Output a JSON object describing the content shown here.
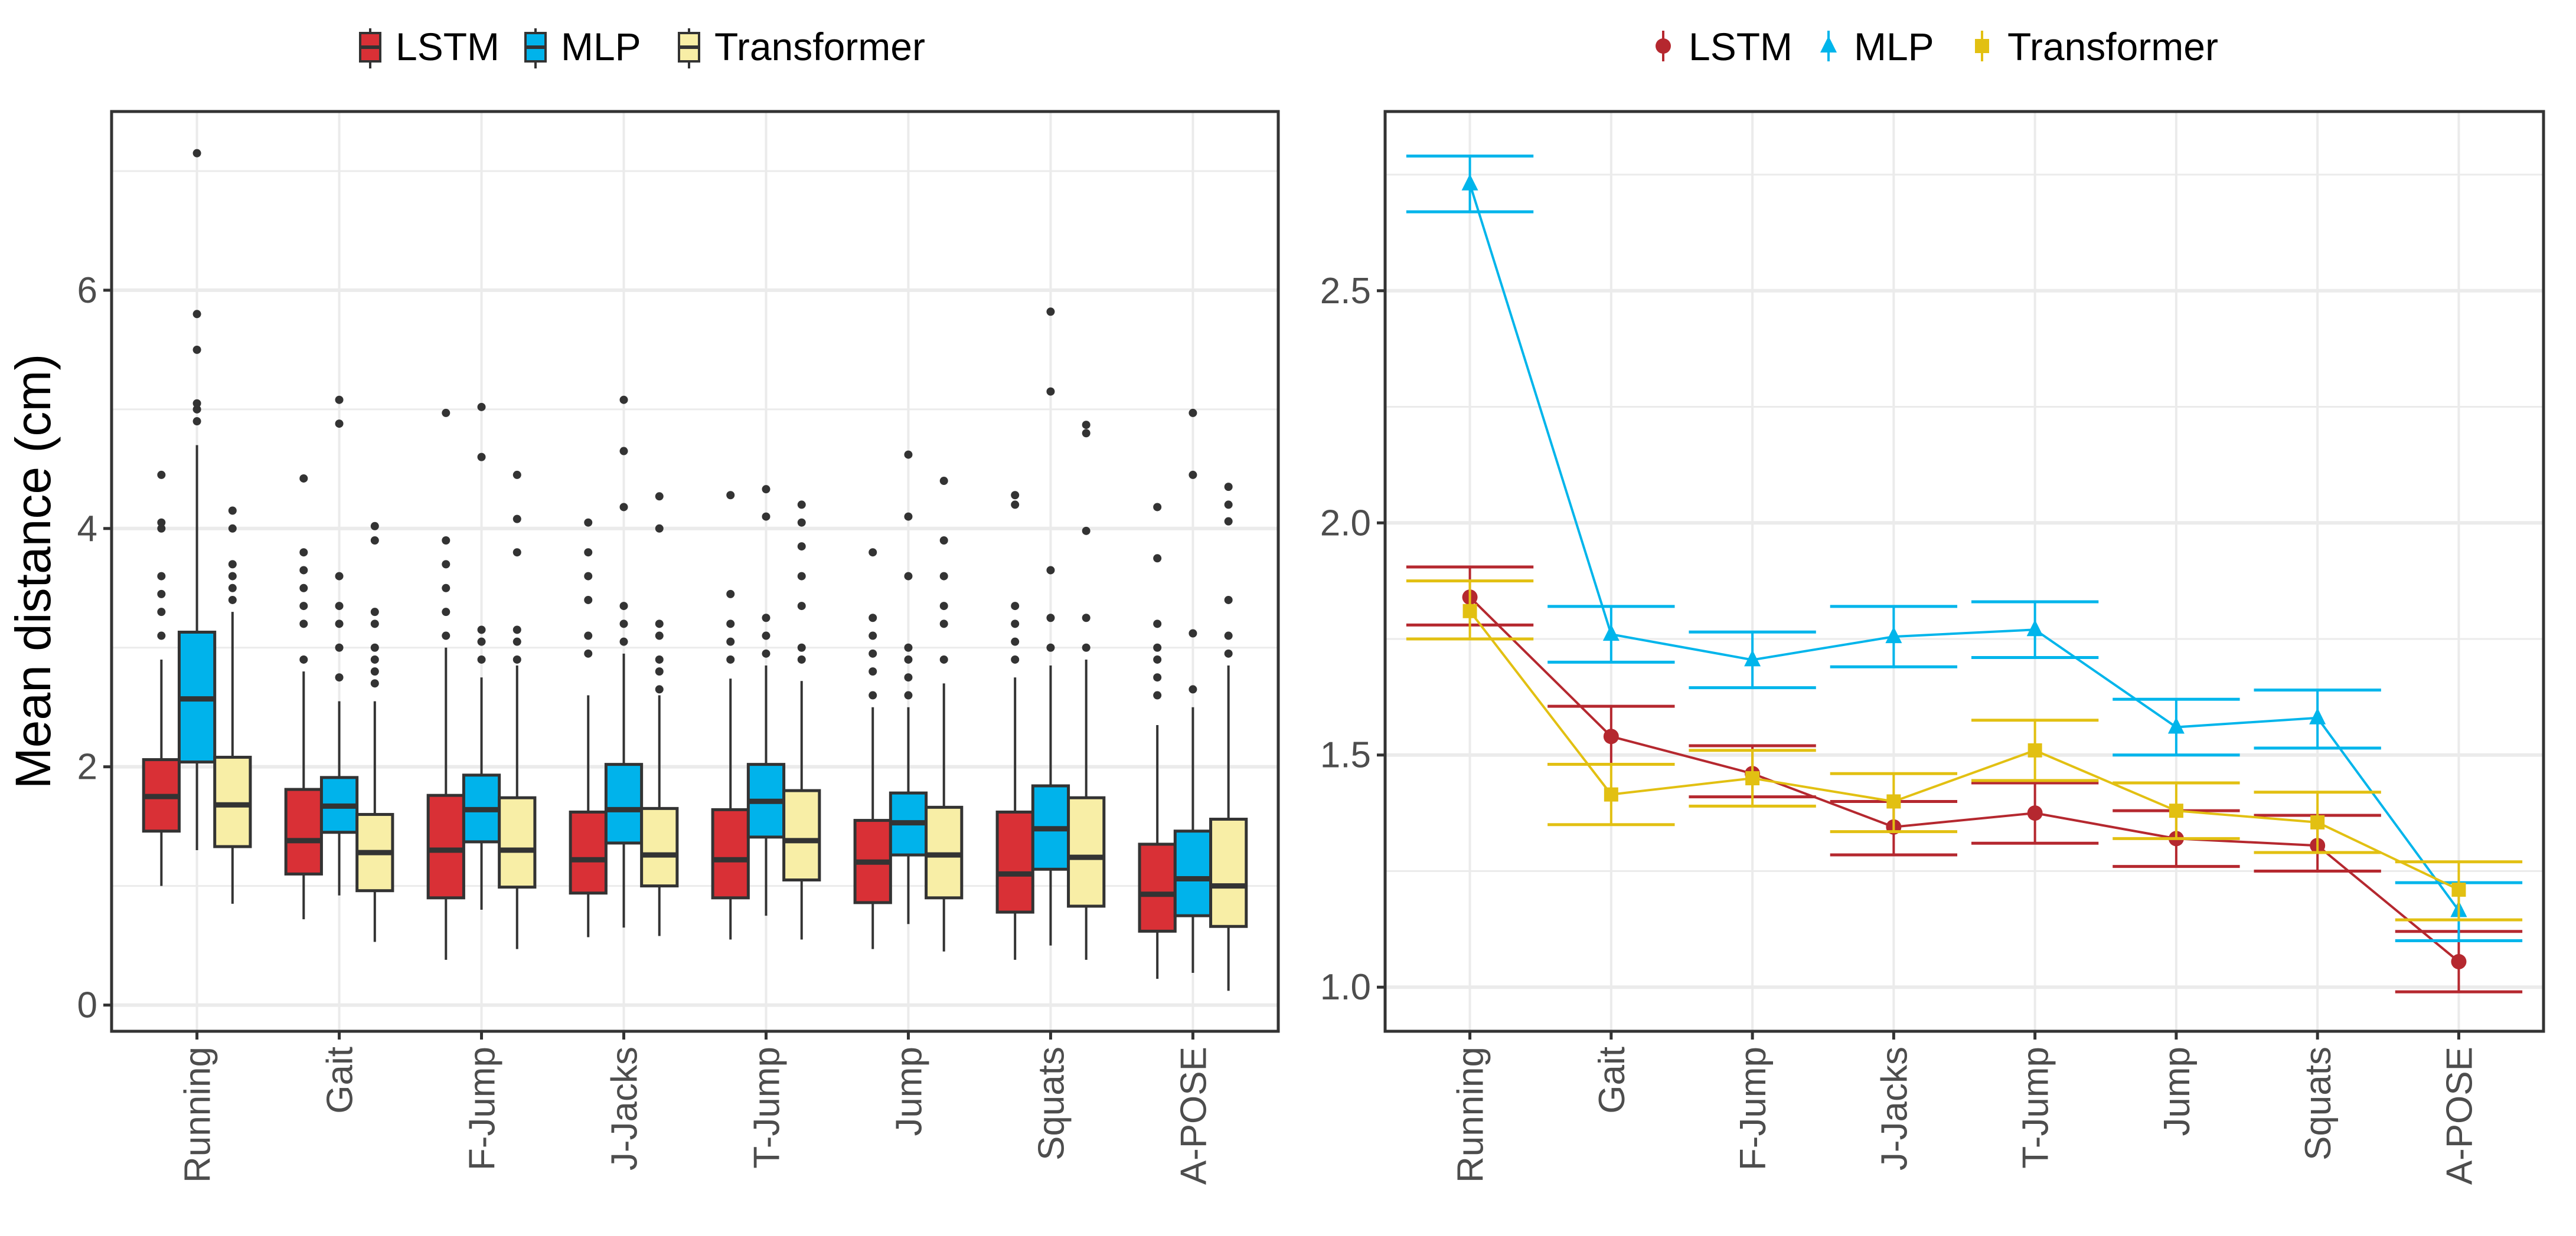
{
  "chart_data": [
    {
      "type": "box",
      "title": "",
      "xlabel": "",
      "ylabel": "Mean distance (cm)",
      "ylim": [
        -0.22,
        7.5
      ],
      "yticks": [
        0,
        2,
        4,
        6
      ],
      "grid": true,
      "legend_position": "top",
      "categories": [
        "Running",
        "Gait",
        "F-Jump",
        "J-Jacks",
        "T-Jump",
        "Jump",
        "Squats",
        "A-POSE"
      ],
      "series": [
        {
          "name": "LSTM",
          "color": "#d93036",
          "boxes": [
            {
              "low": 1.0,
              "q1": 1.46,
              "median": 1.75,
              "q3": 2.06,
              "high": 2.9,
              "outliers": [
                3.1,
                3.3,
                3.45,
                3.6,
                4.0,
                4.05,
                4.45
              ]
            },
            {
              "low": 0.72,
              "q1": 1.1,
              "median": 1.38,
              "q3": 1.81,
              "high": 2.8,
              "outliers": [
                2.9,
                3.2,
                3.35,
                3.5,
                3.65,
                3.8,
                4.42
              ]
            },
            {
              "low": 0.38,
              "q1": 0.9,
              "median": 1.3,
              "q3": 1.76,
              "high": 3.0,
              "outliers": [
                3.1,
                3.3,
                3.5,
                3.7,
                3.9,
                4.97
              ]
            },
            {
              "low": 0.57,
              "q1": 0.94,
              "median": 1.22,
              "q3": 1.62,
              "high": 2.6,
              "outliers": [
                2.95,
                3.1,
                3.4,
                3.6,
                3.8,
                4.05
              ]
            },
            {
              "low": 0.55,
              "q1": 0.9,
              "median": 1.22,
              "q3": 1.64,
              "high": 2.74,
              "outliers": [
                2.9,
                3.05,
                3.2,
                3.45,
                4.28
              ]
            },
            {
              "low": 0.47,
              "q1": 0.86,
              "median": 1.2,
              "q3": 1.55,
              "high": 2.5,
              "outliers": [
                2.6,
                2.8,
                2.95,
                3.1,
                3.25,
                3.8
              ]
            },
            {
              "low": 0.38,
              "q1": 0.78,
              "median": 1.1,
              "q3": 1.62,
              "high": 2.75,
              "outliers": [
                2.9,
                3.05,
                3.2,
                3.35,
                4.2,
                4.28
              ]
            },
            {
              "low": 0.22,
              "q1": 0.62,
              "median": 0.93,
              "q3": 1.35,
              "high": 2.35,
              "outliers": [
                2.6,
                2.75,
                2.9,
                3.0,
                3.2,
                3.75,
                4.18
              ]
            }
          ]
        },
        {
          "name": "MLP",
          "color": "#00b3eb",
          "boxes": [
            {
              "low": 1.3,
              "q1": 2.04,
              "median": 2.57,
              "q3": 3.13,
              "high": 4.7,
              "outliers": [
                4.9,
                5.0,
                5.05,
                5.5,
                5.8,
                7.15
              ]
            },
            {
              "low": 0.92,
              "q1": 1.45,
              "median": 1.67,
              "q3": 1.91,
              "high": 2.55,
              "outliers": [
                2.75,
                3.0,
                3.2,
                3.35,
                3.6,
                4.88,
                5.08
              ]
            },
            {
              "low": 0.8,
              "q1": 1.37,
              "median": 1.64,
              "q3": 1.93,
              "high": 2.75,
              "outliers": [
                2.9,
                3.05,
                3.15,
                4.6,
                5.02
              ]
            },
            {
              "low": 0.65,
              "q1": 1.36,
              "median": 1.64,
              "q3": 2.02,
              "high": 2.95,
              "outliers": [
                3.05,
                3.2,
                3.35,
                4.18,
                4.65,
                5.08
              ]
            },
            {
              "low": 0.75,
              "q1": 1.41,
              "median": 1.71,
              "q3": 2.02,
              "high": 2.85,
              "outliers": [
                2.95,
                3.1,
                3.25,
                4.1,
                4.33
              ]
            },
            {
              "low": 0.68,
              "q1": 1.26,
              "median": 1.53,
              "q3": 1.78,
              "high": 2.5,
              "outliers": [
                2.6,
                2.75,
                2.9,
                3.0,
                3.6,
                4.1,
                4.62
              ]
            },
            {
              "low": 0.5,
              "q1": 1.14,
              "median": 1.48,
              "q3": 1.84,
              "high": 2.85,
              "outliers": [
                3.0,
                3.25,
                3.65,
                5.15,
                5.82
              ]
            },
            {
              "low": 0.27,
              "q1": 0.75,
              "median": 1.06,
              "q3": 1.46,
              "high": 2.5,
              "outliers": [
                2.65,
                3.12,
                4.45,
                4.97
              ]
            }
          ]
        },
        {
          "name": "Transformer",
          "color": "#f8eea6",
          "boxes": [
            {
              "low": 0.85,
              "q1": 1.33,
              "median": 1.68,
              "q3": 2.08,
              "high": 3.3,
              "outliers": [
                3.4,
                3.5,
                3.6,
                3.7,
                4.0,
                4.15
              ]
            },
            {
              "low": 0.53,
              "q1": 0.96,
              "median": 1.28,
              "q3": 1.6,
              "high": 2.55,
              "outliers": [
                2.7,
                2.8,
                2.9,
                3.0,
                3.2,
                3.3,
                3.9,
                4.02
              ]
            },
            {
              "low": 0.47,
              "q1": 0.99,
              "median": 1.3,
              "q3": 1.74,
              "high": 2.85,
              "outliers": [
                2.9,
                3.05,
                3.15,
                3.8,
                4.08,
                4.45
              ]
            },
            {
              "low": 0.58,
              "q1": 1.0,
              "median": 1.26,
              "q3": 1.65,
              "high": 2.6,
              "outliers": [
                2.65,
                2.8,
                2.9,
                3.1,
                3.2,
                4.0,
                4.27
              ]
            },
            {
              "low": 0.55,
              "q1": 1.05,
              "median": 1.38,
              "q3": 1.8,
              "high": 2.72,
              "outliers": [
                2.9,
                3.0,
                3.35,
                3.6,
                3.85,
                4.05,
                4.2
              ]
            },
            {
              "low": 0.45,
              "q1": 0.9,
              "median": 1.26,
              "q3": 1.66,
              "high": 2.7,
              "outliers": [
                2.9,
                3.2,
                3.35,
                3.6,
                3.9,
                4.4
              ]
            },
            {
              "low": 0.38,
              "q1": 0.83,
              "median": 1.24,
              "q3": 1.74,
              "high": 2.9,
              "outliers": [
                3.0,
                3.25,
                3.98,
                4.8,
                4.87
              ]
            },
            {
              "low": 0.12,
              "q1": 0.66,
              "median": 1.0,
              "q3": 1.56,
              "high": 2.85,
              "outliers": [
                2.95,
                3.1,
                3.4,
                4.06,
                4.2,
                4.35
              ]
            }
          ]
        }
      ]
    },
    {
      "type": "line",
      "title": "",
      "xlabel": "",
      "ylabel": "",
      "ylim": [
        0.905,
        2.886
      ],
      "yticks": [
        "1.0",
        "1.5",
        "2.0",
        "2.5"
      ],
      "grid": true,
      "legend_position": "top",
      "categories": [
        "Running",
        "Gait",
        "F-Jump",
        "J-Jacks",
        "T-Jump",
        "Jump",
        "Squats",
        "A-POSE"
      ],
      "series": [
        {
          "name": "LSTM",
          "color": "#b5282f",
          "marker": "circle",
          "values": [
            1.84,
            1.54,
            1.46,
            1.345,
            1.375,
            1.32,
            1.305,
            1.055
          ],
          "err_low": [
            1.78,
            1.48,
            1.41,
            1.285,
            1.31,
            1.26,
            1.25,
            0.99
          ],
          "err_high": [
            1.905,
            1.605,
            1.52,
            1.4,
            1.44,
            1.38,
            1.37,
            1.12
          ]
        },
        {
          "name": "MLP",
          "color": "#00b5eb",
          "marker": "triangle",
          "values": [
            2.73,
            1.76,
            1.705,
            1.755,
            1.77,
            1.56,
            1.58,
            1.165
          ],
          "err_low": [
            2.67,
            1.7,
            1.645,
            1.69,
            1.71,
            1.5,
            1.515,
            1.1
          ],
          "err_high": [
            2.79,
            1.82,
            1.765,
            1.82,
            1.83,
            1.62,
            1.64,
            1.225
          ]
        },
        {
          "name": "Transformer",
          "color": "#e2c012",
          "marker": "square",
          "values": [
            1.81,
            1.415,
            1.45,
            1.4,
            1.51,
            1.38,
            1.355,
            1.21
          ],
          "err_low": [
            1.75,
            1.35,
            1.39,
            1.335,
            1.445,
            1.32,
            1.29,
            1.145
          ],
          "err_high": [
            1.875,
            1.48,
            1.51,
            1.46,
            1.575,
            1.44,
            1.42,
            1.27
          ]
        }
      ]
    }
  ]
}
